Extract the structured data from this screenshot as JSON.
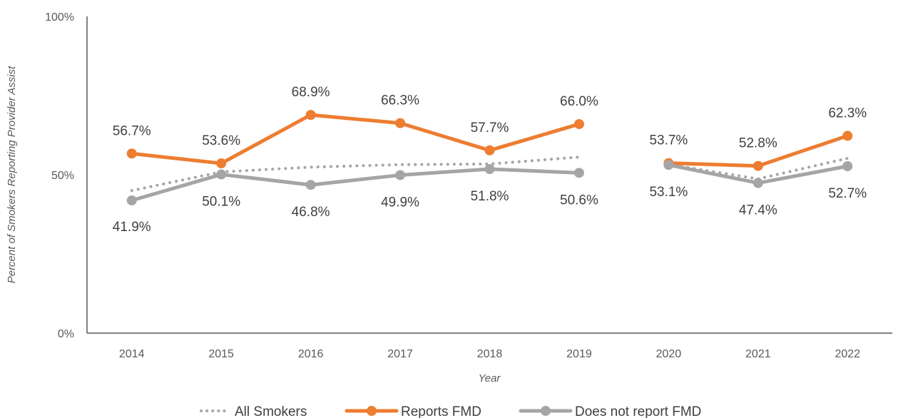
{
  "chart_data": {
    "type": "line",
    "title": "",
    "xlabel": "Year",
    "ylabel": "Percent of Smokers Reporting Provider Assist",
    "categories": [
      "2014",
      "2015",
      "2016",
      "2017",
      "2018",
      "2019",
      "2020",
      "2021",
      "2022"
    ],
    "ylim": [
      0,
      100
    ],
    "y_ticks": [
      "0%",
      "50%",
      "100%"
    ],
    "y_tick_values": [
      0,
      50,
      100
    ],
    "gap_after": "2019",
    "legend_position": "bottom",
    "grid": false,
    "series": [
      {
        "name": "All Smokers",
        "style": "dotted",
        "color": "#A5A5A5",
        "values": [
          45.0,
          50.9,
          52.4,
          53.2,
          53.4,
          55.6,
          53.3,
          48.7,
          55.2
        ],
        "labels": null
      },
      {
        "name": "Reports FMD",
        "style": "solid-marker",
        "color": "#ED7D31",
        "values": [
          56.7,
          53.6,
          68.9,
          66.3,
          57.7,
          66.0,
          53.7,
          52.8,
          62.3
        ],
        "labels": [
          "56.7%",
          "53.6%",
          "68.9%",
          "66.3%",
          "57.7%",
          "66.0%",
          "53.7%",
          "52.8%",
          "62.3%"
        ]
      },
      {
        "name": "Does not report FMD",
        "style": "solid-marker",
        "color": "#A5A5A5",
        "values": [
          41.9,
          50.1,
          46.8,
          49.9,
          51.8,
          50.6,
          53.1,
          47.4,
          52.7
        ],
        "labels": [
          "41.9%",
          "50.1%",
          "46.8%",
          "49.9%",
          "51.8%",
          "50.6%",
          "53.1%",
          "47.4%",
          "52.7%"
        ]
      }
    ]
  }
}
